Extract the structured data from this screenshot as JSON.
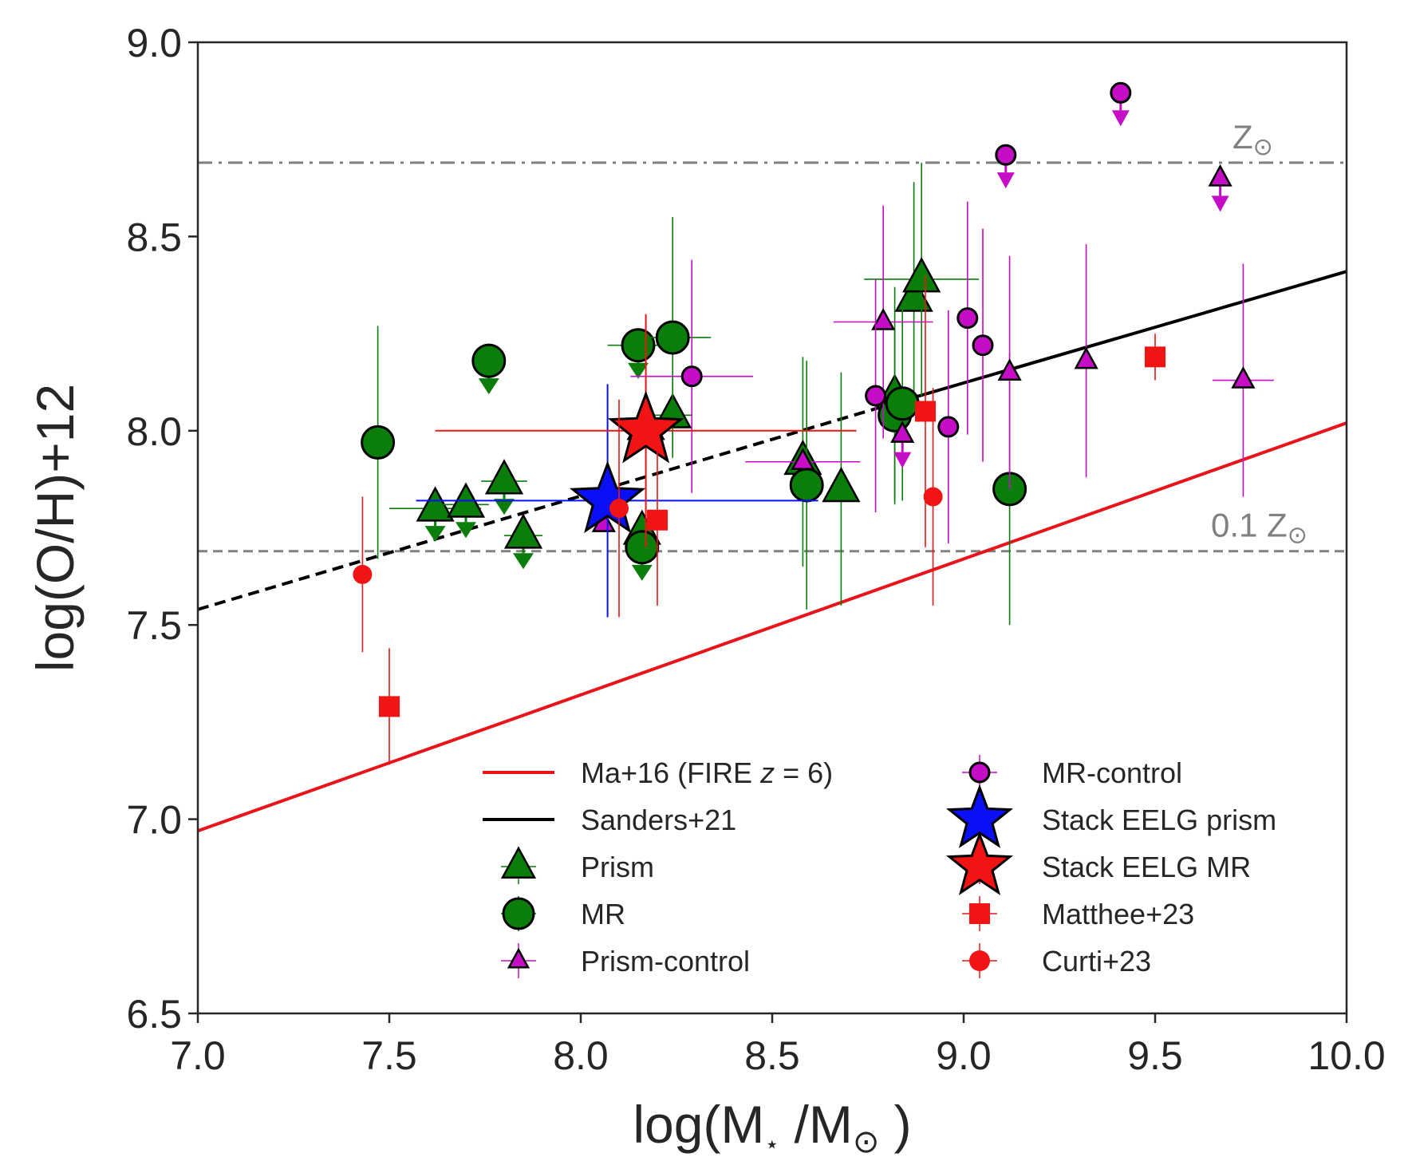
{
  "chart_data": {
    "type": "scatter",
    "xlabel": "log(M",
    "xlabel_sub": "⋆",
    "xlabel_mid": " /M",
    "xlabel_sub2": "⊙",
    "xlabel_end": " )",
    "ylabel": "log(O/H)+12",
    "xlim": [
      7.0,
      10.0
    ],
    "ylim": [
      6.5,
      9.0
    ],
    "x_ticks": [
      7.0,
      7.5,
      8.0,
      8.5,
      9.0,
      9.5,
      10.0
    ],
    "x_tick_labels": [
      "7.0",
      "7.5",
      "8.0",
      "8.5",
      "9.0",
      "9.5",
      "10.0"
    ],
    "y_ticks": [
      6.5,
      7.0,
      7.5,
      8.0,
      8.5,
      9.0
    ],
    "y_tick_labels": [
      "6.5",
      "7.0",
      "7.5",
      "8.0",
      "8.5",
      "9.0"
    ],
    "reference_lines": [
      {
        "name": "solar",
        "y": 8.69,
        "style": "dashdot",
        "color": "#808080",
        "label": "Z",
        "label_sub": "⊙"
      },
      {
        "name": "tenth-solar",
        "y": 7.69,
        "style": "dashed",
        "color": "#808080",
        "label": "0.1 Z",
        "label_sub": "⊙"
      }
    ],
    "relations": [
      {
        "name": "Ma+16 (FIRE z = 6)",
        "color": "#e8141a",
        "x": [
          7.0,
          10.0
        ],
        "y": [
          6.97,
          8.02
        ],
        "style": "solid"
      },
      {
        "name": "Sanders+21",
        "color": "#000000",
        "x": [
          7.0,
          8.85
        ],
        "y": [
          7.54,
          8.08
        ],
        "style": "dashed"
      },
      {
        "name": "Sanders+21",
        "color": "#000000",
        "x": [
          8.85,
          10.0
        ],
        "y": [
          8.08,
          8.41
        ],
        "style": "solid"
      }
    ],
    "series": [
      {
        "name": "Prism",
        "marker": "triangle",
        "color": "#0a7d0a",
        "size": 22,
        "points": [
          {
            "x": 7.62,
            "y": 7.8,
            "xerr": 0.12,
            "upper": true
          },
          {
            "x": 7.7,
            "y": 7.81,
            "xerr": 0.06,
            "upper": true
          },
          {
            "x": 7.8,
            "y": 7.87,
            "xerr": 0.06,
            "upper": true
          },
          {
            "x": 7.85,
            "y": 7.73,
            "xerr": 0.05,
            "upper": true
          },
          {
            "x": 8.16,
            "y": 7.74,
            "upper": true
          },
          {
            "x": 8.17,
            "y": 8.01,
            "yerr": 0.1
          },
          {
            "x": 8.24,
            "y": 8.04,
            "yerr": 0.1,
            "xerr": 0.05
          },
          {
            "x": 8.58,
            "y": 7.92,
            "yerr": 0.27
          },
          {
            "x": 8.68,
            "y": 7.85,
            "yerr": 0.3
          },
          {
            "x": 8.82,
            "y": 8.09,
            "yerr": 0.28
          },
          {
            "x": 8.87,
            "y": 8.34,
            "yerr": 0.3
          },
          {
            "x": 8.89,
            "y": 8.39,
            "yerr": 0.3,
            "xerr": 0.15
          }
        ]
      },
      {
        "name": "MR",
        "marker": "circle",
        "color": "#0a7d0a",
        "size": 20,
        "points": [
          {
            "x": 7.47,
            "y": 7.97,
            "yerr": 0.3
          },
          {
            "x": 7.76,
            "y": 8.18,
            "upper": true
          },
          {
            "x": 8.15,
            "y": 8.22,
            "xerr": 0.08,
            "upper": true
          },
          {
            "x": 8.24,
            "y": 8.24,
            "yerr": 0.31,
            "xerr": 0.1
          },
          {
            "x": 8.16,
            "y": 7.7,
            "upper": true
          },
          {
            "x": 8.59,
            "y": 7.86,
            "yerr": 0.32
          },
          {
            "x": 8.82,
            "y": 8.04,
            "yerr": 0.22
          },
          {
            "x": 8.84,
            "y": 8.07,
            "yerr": 0.25
          },
          {
            "x": 9.12,
            "y": 7.85,
            "yerr": 0.35
          }
        ]
      },
      {
        "name": "Prism-control",
        "marker": "triangle",
        "color": "#c40dc4",
        "size": 13,
        "points": [
          {
            "x": 8.06,
            "y": 7.76
          },
          {
            "x": 8.58,
            "y": 7.92,
            "xerr": 0.15
          },
          {
            "x": 8.79,
            "y": 8.28,
            "yerr": 0.3,
            "xerr": 0.13
          },
          {
            "x": 8.84,
            "y": 7.99,
            "upper": true
          },
          {
            "x": 9.12,
            "y": 8.15,
            "yerr": 0.3
          },
          {
            "x": 9.32,
            "y": 8.18,
            "yerr": 0.3
          },
          {
            "x": 9.67,
            "y": 8.65,
            "upper": true
          },
          {
            "x": 9.73,
            "y": 8.13,
            "yerr": 0.3,
            "xerr": 0.08
          }
        ]
      },
      {
        "name": "MR-control",
        "marker": "circle",
        "color": "#c40dc4",
        "size": 12,
        "points": [
          {
            "x": 8.29,
            "y": 8.14,
            "yerr": 0.3,
            "xerr": 0.16
          },
          {
            "x": 8.77,
            "y": 8.09,
            "yerr": 0.3
          },
          {
            "x": 8.96,
            "y": 8.01,
            "yerr": 0.3
          },
          {
            "x": 9.01,
            "y": 8.29,
            "yerr": 0.3
          },
          {
            "x": 9.05,
            "y": 8.22,
            "yerr": 0.3
          },
          {
            "x": 9.11,
            "y": 8.71,
            "upper": true
          },
          {
            "x": 9.41,
            "y": 8.87,
            "upper": true
          }
        ]
      },
      {
        "name": "Stack EELG prism",
        "marker": "star",
        "color": "#0a10f5",
        "size": 46,
        "points": [
          {
            "x": 8.07,
            "y": 7.82,
            "xerr_low": 0.5,
            "xerr_high": 0.55,
            "yerr": 0.3
          }
        ]
      },
      {
        "name": "Stack EELG MR",
        "marker": "star",
        "color": "#f01414",
        "size": 46,
        "points": [
          {
            "x": 8.17,
            "y": 8.0,
            "xerr_low": 0.55,
            "xerr_high": 0.55,
            "yerr": 0.3
          }
        ]
      },
      {
        "name": "Matthee+23",
        "marker": "square",
        "color": "#f01414",
        "size": 13,
        "points": [
          {
            "x": 7.5,
            "y": 7.29,
            "yerr": 0.15
          },
          {
            "x": 8.2,
            "y": 7.77,
            "yerr": 0.22
          },
          {
            "x": 8.9,
            "y": 8.05,
            "yerr": 0.35
          },
          {
            "x": 9.5,
            "y": 8.19,
            "yerr": 0.06
          }
        ]
      },
      {
        "name": "Curti+23",
        "marker": "circle",
        "color": "#f01414",
        "size": 12,
        "points": [
          {
            "x": 7.43,
            "y": 7.63,
            "yerr": 0.2
          },
          {
            "x": 8.1,
            "y": 7.8,
            "yerr": 0.28
          },
          {
            "x": 8.92,
            "y": 7.83,
            "yerr": 0.28
          }
        ]
      }
    ],
    "legend": {
      "placement": "lower-right",
      "entries": [
        {
          "label": "Ma+16 (FIRE ",
          "label_italic": "z",
          "label_end": " = 6)",
          "kind": "line",
          "color": "#e8141a"
        },
        {
          "label": "Sanders+21",
          "kind": "line",
          "color": "#000000"
        },
        {
          "label": "Prism",
          "kind": "triangle",
          "color": "#0a7d0a"
        },
        {
          "label": "MR",
          "kind": "circle",
          "color": "#0a7d0a"
        },
        {
          "label": "Prism-control",
          "kind": "small-triangle",
          "color": "#c40dc4"
        },
        {
          "label": "MR-control",
          "kind": "small-circle",
          "color": "#c40dc4"
        },
        {
          "label": "Stack EELG prism",
          "kind": "star",
          "color": "#0a10f5"
        },
        {
          "label": "Stack EELG MR",
          "kind": "star",
          "color": "#f01414"
        },
        {
          "label": "Matthee+23",
          "kind": "square",
          "color": "#f01414"
        },
        {
          "label": "Curti+23",
          "kind": "dot",
          "color": "#f01414"
        }
      ]
    }
  }
}
